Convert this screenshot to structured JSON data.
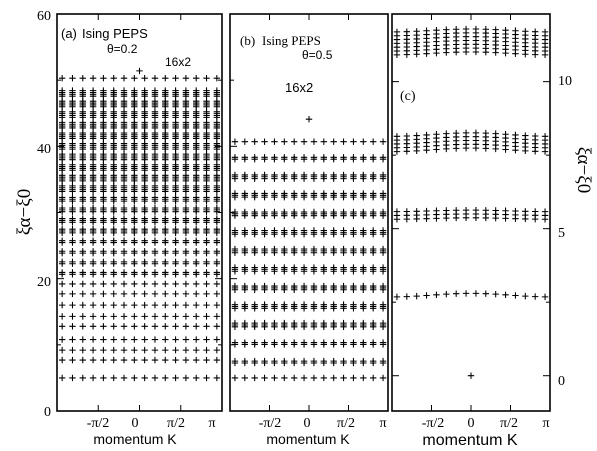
{
  "chart_data": [
    {
      "type": "scatter",
      "panel_label": "(a)",
      "title": "Ising PEPS",
      "annotations": [
        "θ=0.2",
        "16x2"
      ],
      "xlabel": "momentum K",
      "ylabel": "ξα−ξ0",
      "xlim": [
        -3.14159,
        3.14159
      ],
      "ylim": [
        0,
        60
      ],
      "xticks": [
        -1.5708,
        0,
        1.5708,
        3.14159
      ],
      "xtick_labels": [
        "-π/2",
        "0",
        "π/2",
        "π"
      ],
      "yticks": [
        0,
        20,
        40,
        60
      ],
      "ytick_labels": [
        "0",
        "20",
        "40",
        "60"
      ],
      "k_points": 16,
      "levels": [
        {
          "value": 5.0,
          "multiplicity": 1
        },
        {
          "value": 7.7,
          "multiplicity": 1
        },
        {
          "value": 9.2,
          "multiplicity": 1
        },
        {
          "value": 10.8,
          "multiplicity": 1
        },
        {
          "value": 12.8,
          "multiplicity": 1
        },
        {
          "value": 14.3,
          "multiplicity": 1
        },
        {
          "value": 16.0,
          "multiplicity": 1
        },
        {
          "value": 17.7,
          "multiplicity": 1
        },
        {
          "value": 19.2,
          "multiplicity": 1
        },
        {
          "value": 20.8,
          "multiplicity": 2
        },
        {
          "value": 22.4,
          "multiplicity": 2
        },
        {
          "value": 24.0,
          "multiplicity": 2
        },
        {
          "value": 25.6,
          "multiplicity": 2
        },
        {
          "value": 27.2,
          "multiplicity": 3
        },
        {
          "value": 28.8,
          "multiplicity": 3
        },
        {
          "value": 30.4,
          "multiplicity": 3
        },
        {
          "value": 32.0,
          "multiplicity": 3
        },
        {
          "value": 33.6,
          "multiplicity": 4
        },
        {
          "value": 35.2,
          "multiplicity": 4
        },
        {
          "value": 36.8,
          "multiplicity": 4
        },
        {
          "value": 38.4,
          "multiplicity": 4
        },
        {
          "value": 40.0,
          "multiplicity": 4
        },
        {
          "value": 41.6,
          "multiplicity": 4
        },
        {
          "value": 43.2,
          "multiplicity": 4
        },
        {
          "value": 44.8,
          "multiplicity": 4
        },
        {
          "value": 46.4,
          "multiplicity": 4
        },
        {
          "value": 48.0,
          "multiplicity": 4
        },
        {
          "value": 50.3,
          "multiplicity": 1
        }
      ],
      "extra_points": [
        {
          "x": 0,
          "y": 51.4
        }
      ]
    },
    {
      "type": "scatter",
      "panel_label": "(b)",
      "title": "Ising PEPS",
      "annotations": [
        "θ=0.5",
        "16x2"
      ],
      "xlabel": "momentum K",
      "ylabel": "",
      "xlim": [
        -3.14159,
        3.14159
      ],
      "ylim": [
        0,
        60
      ],
      "xticks": [
        -1.5708,
        0,
        1.5708,
        3.14159
      ],
      "xtick_labels": [
        "-π/2",
        "0",
        "π/2",
        "π"
      ],
      "k_points": 16,
      "levels": [
        {
          "value": 5.0,
          "multiplicity": 1
        },
        {
          "value": 7.4,
          "multiplicity": 2
        },
        {
          "value": 10.2,
          "multiplicity": 2
        },
        {
          "value": 13.0,
          "multiplicity": 3
        },
        {
          "value": 15.8,
          "multiplicity": 3
        },
        {
          "value": 18.6,
          "multiplicity": 3
        },
        {
          "value": 21.4,
          "multiplicity": 3
        },
        {
          "value": 24.2,
          "multiplicity": 3
        },
        {
          "value": 27.0,
          "multiplicity": 3
        },
        {
          "value": 29.8,
          "multiplicity": 3
        },
        {
          "value": 32.6,
          "multiplicity": 3
        },
        {
          "value": 35.4,
          "multiplicity": 3
        },
        {
          "value": 38.2,
          "multiplicity": 2
        },
        {
          "value": 40.7,
          "multiplicity": 1
        }
      ],
      "extra_points": [
        {
          "x": 0,
          "y": 44.1
        }
      ]
    },
    {
      "type": "scatter",
      "panel_label": "(c)",
      "title": "",
      "xlabel": "momentum K",
      "ylabel": "ξα−ξ0",
      "xlim": [
        -3.14159,
        3.14159
      ],
      "ylim": [
        -1.2,
        12.3
      ],
      "xticks": [
        -1.5708,
        0,
        1.5708,
        3.14159
      ],
      "xtick_labels": [
        "-π/2",
        "0",
        "π/2",
        "π"
      ],
      "yticks": [
        0,
        5,
        10
      ],
      "ytick_labels": [
        "0",
        "5",
        "10"
      ],
      "k_points": 16,
      "levels": [
        {
          "value": 2.8,
          "multiplicity": 1,
          "dispersion": 0.12
        },
        {
          "value": 5.5,
          "multiplicity": 3,
          "dispersion": 0.05
        },
        {
          "value": 8.0,
          "multiplicity": 5,
          "dispersion": 0.12
        },
        {
          "value": 11.4,
          "multiplicity": 7,
          "dispersion": 0.1
        }
      ],
      "extra_points": [
        {
          "x": 0,
          "y": 0
        }
      ]
    }
  ]
}
